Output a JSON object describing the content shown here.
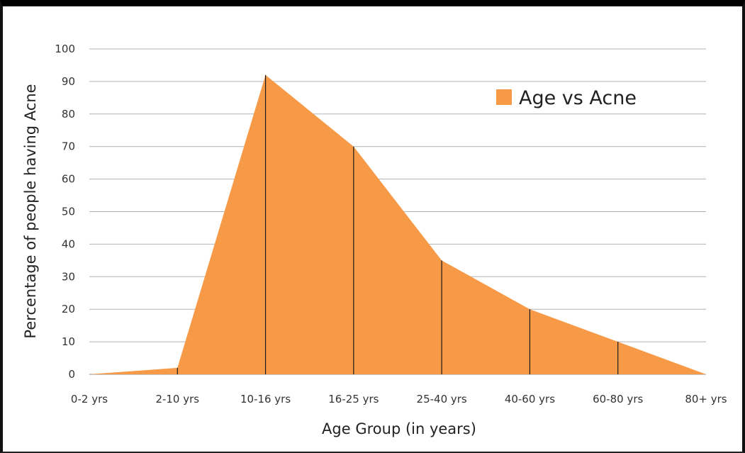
{
  "chart_data": {
    "type": "area",
    "categories": [
      "0-2 yrs",
      "2-10 yrs",
      "10-16 yrs",
      "16-25 yrs",
      "25-40 yrs",
      "40-60 yrs",
      "60-80 yrs",
      "80+ yrs"
    ],
    "series": [
      {
        "name": "Age vs Acne",
        "values": [
          0,
          2,
          92,
          70,
          35,
          20,
          10,
          0
        ],
        "color": "#F79A48"
      }
    ],
    "xlabel": "Age Group (in years)",
    "ylabel": "Percentage of people having Acne",
    "ylim": [
      0,
      100
    ],
    "yticks": [
      "0",
      "10",
      "20",
      "30",
      "40",
      "50",
      "60",
      "70",
      "80",
      "90",
      "100"
    ],
    "grid": true,
    "legend": "top-right",
    "drop_lines": true
  }
}
